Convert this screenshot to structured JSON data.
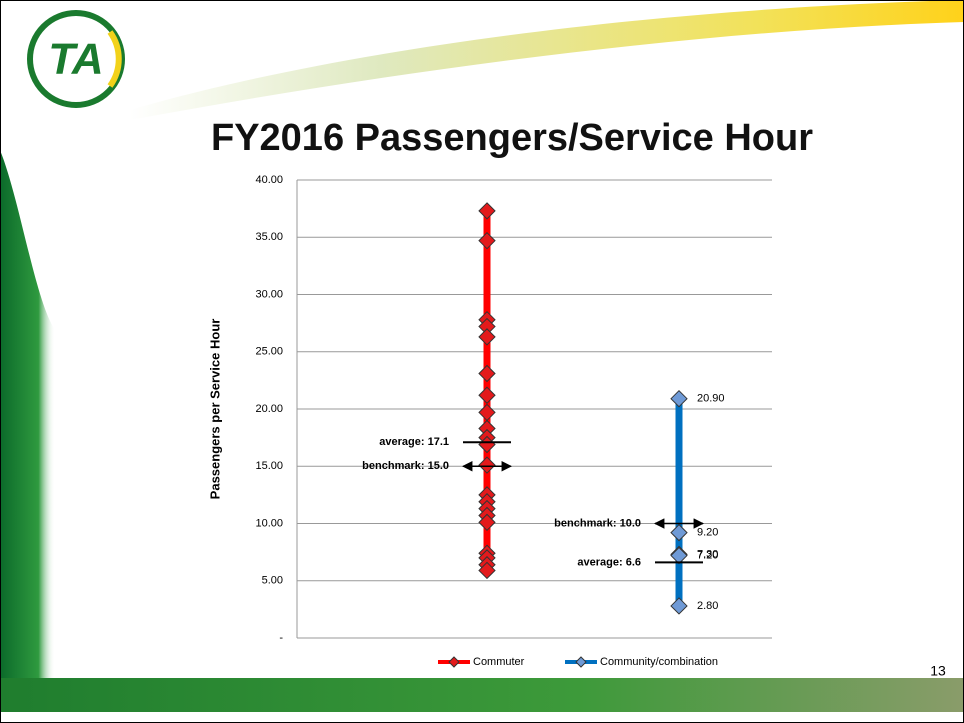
{
  "logo": "TA",
  "page_number": "13",
  "chart_data": {
    "type": "dot",
    "title": "FY2016 Passengers/Service Hour",
    "y_label": "Passengers per Service Hour",
    "ylim": [
      0,
      40
    ],
    "yticks": [
      {
        "value": 0,
        "label": "-"
      },
      {
        "value": 5,
        "label": "5.00"
      },
      {
        "value": 10,
        "label": "10.00"
      },
      {
        "value": 15,
        "label": "15.00"
      },
      {
        "value": 20,
        "label": "20.00"
      },
      {
        "value": 25,
        "label": "25.00"
      },
      {
        "value": 30,
        "label": "30.00"
      },
      {
        "value": 35,
        "label": "35.00"
      },
      {
        "value": 40,
        "label": "40.00"
      }
    ],
    "grid": true,
    "legend": "bottom",
    "series": [
      {
        "name": "Commuter",
        "color": "#ff0000",
        "marker_color": "#e31a1c",
        "values": [
          37.3,
          34.7,
          27.8,
          27.2,
          26.3,
          23.1,
          21.2,
          19.7,
          18.3,
          17.5,
          16.9,
          15.1,
          12.5,
          11.9,
          11.3,
          10.7,
          10.1,
          7.4,
          7.0,
          6.4,
          5.9
        ],
        "annotations": [
          {
            "text": "average: 17.1",
            "value": 17.1,
            "marker": "line"
          },
          {
            "text": "benchmark: 15.0",
            "value": 15.0,
            "marker": "double-arrow"
          }
        ]
      },
      {
        "name": "Community/combination",
        "color": "#0070c0",
        "marker_color": "#6f9ad6",
        "values": [
          20.9,
          9.2,
          7.3,
          7.2,
          2.8
        ],
        "value_labels": [
          "20.90",
          "9.20",
          "7.30",
          "7.20",
          "2.80"
        ],
        "annotations": [
          {
            "text": "benchmark: 10.0",
            "value": 10.0,
            "marker": "double-arrow"
          },
          {
            "text": "average: 6.6",
            "value": 6.6,
            "marker": "line"
          }
        ]
      }
    ]
  }
}
